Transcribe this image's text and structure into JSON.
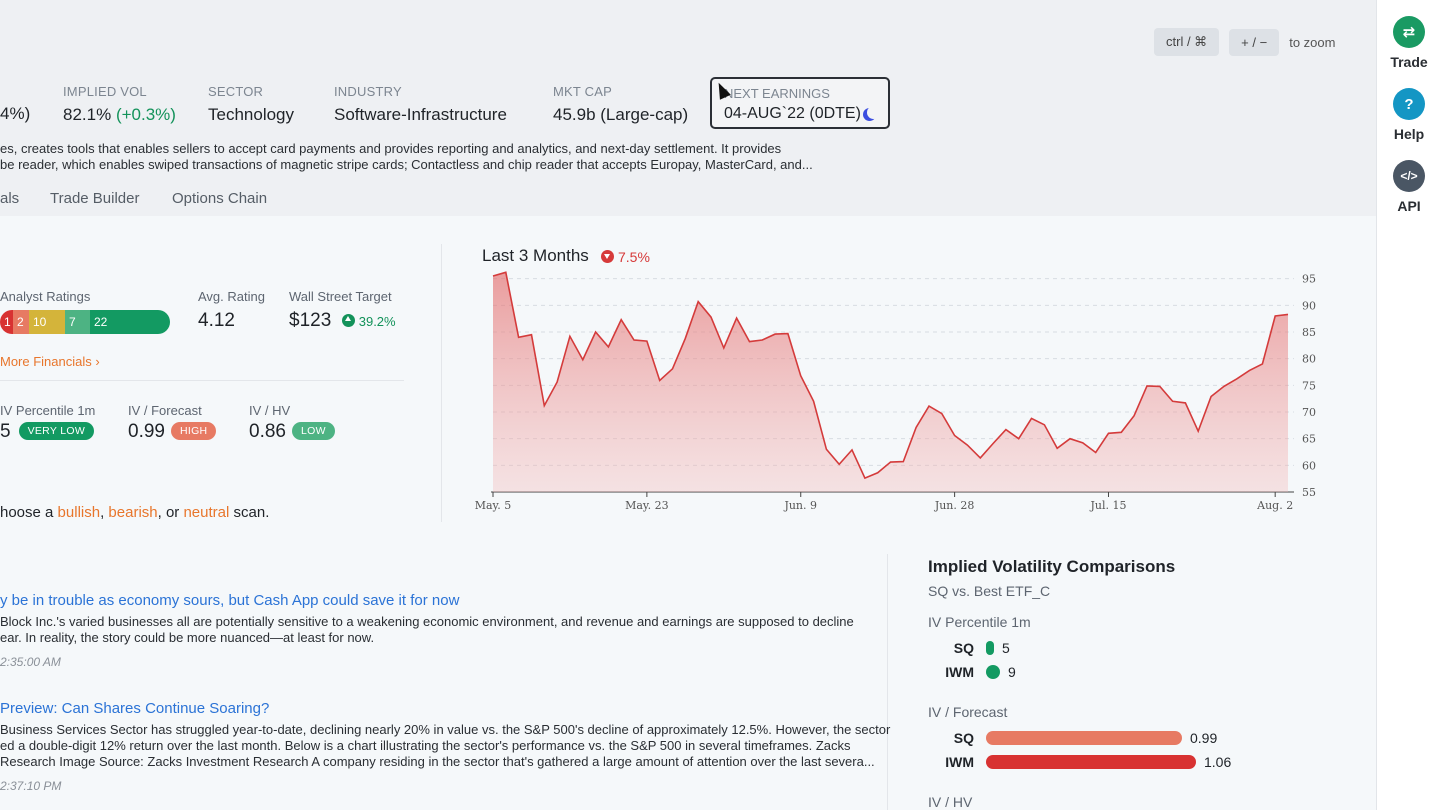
{
  "zoom": {
    "key1": "ctrl / ⌘",
    "key2": "+ / −",
    "text": "to zoom"
  },
  "stats": {
    "partial_change": "4%)",
    "implied_vol": {
      "label": "IMPLIED VOL",
      "value": "82.1%",
      "change": "(+0.3%)"
    },
    "sector": {
      "label": "SECTOR",
      "value": "Technology"
    },
    "industry": {
      "label": "INDUSTRY",
      "value": "Software-Infrastructure"
    },
    "mkt_cap": {
      "label": "MKT CAP",
      "value": "45.9b (Large-cap)"
    },
    "next_earnings": {
      "label": "NEXT EARNINGS",
      "value": "04-AUG`22 (0DTE)"
    }
  },
  "description": {
    "line1": "es, creates tools that enables sellers to accept card payments and provides reporting and analytics, and next-day settlement. It provides",
    "line2": "be reader, which enables swiped transactions of magnetic stripe cards; Contactless and chip reader that accepts Europay, MasterCard, and..."
  },
  "tabs": [
    "als",
    "Trade Builder",
    "Options Chain"
  ],
  "rail": [
    {
      "label": "Trade",
      "icon": "swap-arrows-icon",
      "glyph": "⇄",
      "color": "#1a9a63"
    },
    {
      "label": "Help",
      "icon": "question-icon",
      "glyph": "?",
      "color": "#1496c4"
    },
    {
      "label": "API",
      "icon": "code-icon",
      "glyph": "</>",
      "color": "#4a5664"
    }
  ],
  "financials": {
    "analyst_ratings_label": "Analyst Ratings",
    "ratings": [
      {
        "value": "1",
        "color": "#d83232"
      },
      {
        "value": "2",
        "color": "#e77a63"
      },
      {
        "value": "10",
        "color": "#d4b43a"
      },
      {
        "value": "7",
        "color": "#4db383"
      },
      {
        "value": "22",
        "color": "#139a62"
      }
    ],
    "avg_rating_label": "Avg. Rating",
    "avg_rating": "4.12",
    "target_label": "Wall Street Target",
    "target": "$123",
    "target_change": "39.2%",
    "more_link": "More Financials",
    "iv_percentile_label": "IV Percentile 1m",
    "iv_percentile": "5",
    "iv_percentile_badge": "VERY LOW",
    "iv_forecast_label": "IV / Forecast",
    "iv_forecast": "0.99",
    "iv_forecast_badge": "HIGH",
    "iv_hv_label": "IV / HV",
    "iv_hv": "0.86",
    "iv_hv_badge": "LOW"
  },
  "scan": {
    "prefix": "hoose a ",
    "bullish": "bullish",
    "sep1": ", ",
    "bearish": "bearish",
    "sep2": ", or ",
    "neutral": "neutral",
    "suffix": " scan."
  },
  "news": [
    {
      "title": "y be in trouble as economy sours, but Cash App could save it for now",
      "body1": "Block Inc.'s varied businesses all are potentially sensitive to a weakening economic environment, and revenue and earnings are supposed to decline",
      "body2": "ear. In reality, the story could be more nuanced—at least for now.",
      "time": "2:35:00 AM"
    },
    {
      "title": "Preview: Can Shares Continue Soaring?",
      "body1": "Business Services Sector has struggled year-to-date, declining nearly 20% in value vs. the S&P 500's decline of approximately 12.5%. However, the sector",
      "body2": "ed a double-digit 12% return over the last month. Below is a chart illustrating the sector's performance vs. the S&P 500 in several timeframes. Zacks",
      "body3": "Research Image Source: Zacks Investment Research A company residing in the sector that's gathered a large amount of attention over the last severa...",
      "time": "2:37:10 PM"
    }
  ],
  "chart_data": {
    "type": "area",
    "title": "Last 3 Months",
    "change": "7.5%",
    "change_direction": "down",
    "xlabel": "",
    "ylabel": "",
    "ylim": [
      55,
      97
    ],
    "yticks": [
      55,
      60,
      65,
      70,
      75,
      80,
      85,
      90,
      95
    ],
    "xticks": [
      {
        "label": "May. 5",
        "index": 0
      },
      {
        "label": "May. 23",
        "index": 12
      },
      {
        "label": "Jun. 9",
        "index": 24
      },
      {
        "label": "Jun. 28",
        "index": 36
      },
      {
        "label": "Jul. 15",
        "index": 48
      },
      {
        "label": "Aug. 2",
        "index": 61
      }
    ],
    "grid": true,
    "color": "#d43b3b",
    "values": [
      95.5,
      96.2,
      84,
      84.5,
      71.2,
      75.6,
      84.2,
      79.8,
      85,
      82.2,
      87.3,
      83.5,
      83.3,
      75.9,
      78.1,
      83.8,
      90.7,
      87.8,
      82,
      87.6,
      83.2,
      83.5,
      84.6,
      84.7,
      76.8,
      72,
      63,
      60.2,
      62.9,
      57.6,
      58.6,
      60.6,
      60.7,
      67.1,
      71.1,
      69.7,
      65.6,
      63.8,
      61.4,
      64.1,
      66.7,
      65,
      68.8,
      67.6,
      63.2,
      65,
      64.2,
      62.4,
      66,
      66.2,
      69.3,
      74.9,
      74.8,
      72,
      71.7,
      66.4,
      72.9,
      74.8,
      76.2,
      77.8,
      79,
      88,
      88.3
    ]
  },
  "iv_comparisons": {
    "title": "Implied Volatility Comparisons",
    "subtitle": "SQ vs. Best ETF_C",
    "groups": [
      {
        "label": "IV Percentile 1m",
        "rows": [
          {
            "name": "SQ",
            "value": "5",
            "num": 5,
            "max": 100,
            "color": "#139a62"
          },
          {
            "name": "IWM",
            "value": "9",
            "num": 9,
            "max": 100,
            "color": "#139a62"
          }
        ]
      },
      {
        "label": "IV / Forecast",
        "rows": [
          {
            "name": "SQ",
            "value": "0.99",
            "num": 0.99,
            "max": 1.06,
            "color": "#e77a63"
          },
          {
            "name": "IWM",
            "value": "1.06",
            "num": 1.06,
            "max": 1.06,
            "color": "#d83232"
          }
        ]
      },
      {
        "label": "IV / HV",
        "rows": []
      }
    ]
  }
}
